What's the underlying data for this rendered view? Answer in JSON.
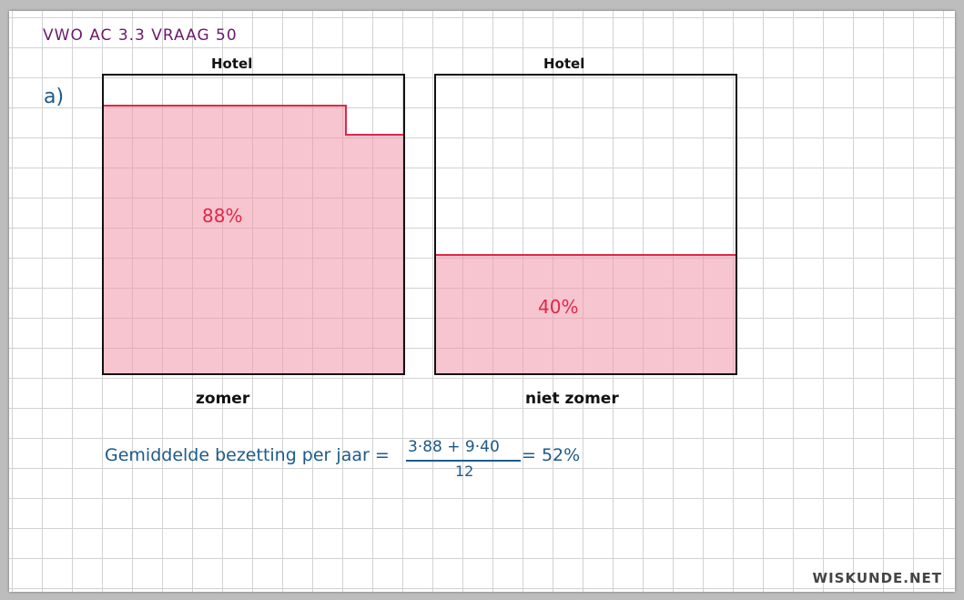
{
  "title": "VWO AC 3.3 VRAAG 50",
  "part_label": "a)",
  "diagrams": [
    {
      "top_label": "Hotel",
      "percent_label": "88%",
      "bottom_label": "zomer"
    },
    {
      "top_label": "Hotel",
      "percent_label": "40%",
      "bottom_label": "niet zomer"
    }
  ],
  "formula": {
    "label": "Gemiddelde bezetting per jaar =",
    "numerator": "3·88 + 9·40",
    "denominator": "12",
    "result": "= 52%"
  },
  "brand": "WISKUNDE.NET",
  "colors": {
    "highlight": "#e0284a",
    "fill": "#f096aa",
    "formula": "#1c5a8a",
    "title": "#6a1a6a"
  }
}
